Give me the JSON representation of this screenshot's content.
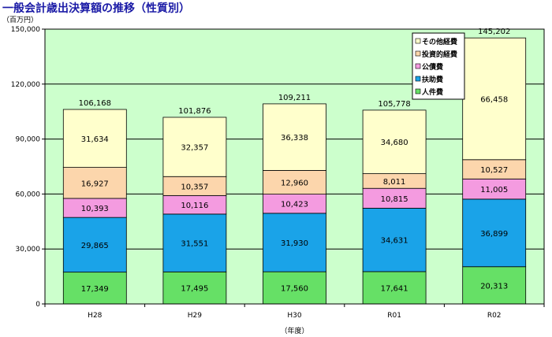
{
  "chart_data": {
    "type": "bar",
    "stacked": true,
    "title": "一般会計歳出決算額の推移（性質別）",
    "unit_label": "（百万円）",
    "xlabel": "（年度）",
    "ylabel": "",
    "ylim": [
      0,
      150000
    ],
    "yticks": [
      0,
      30000,
      60000,
      90000,
      120000,
      150000
    ],
    "ytick_labels": [
      "0",
      "30,000",
      "60,000",
      "90,000",
      "120,000",
      "150,000"
    ],
    "grid": true,
    "legend_position": "top-right",
    "categories": [
      "H28",
      "H29",
      "H30",
      "R01",
      "R02"
    ],
    "totals": [
      106168,
      101876,
      109211,
      105778,
      145202
    ],
    "total_labels": [
      "106,168",
      "101,876",
      "109,211",
      "105,778",
      "145,202"
    ],
    "series": [
      {
        "name": "人件費",
        "color": "#66e066",
        "values": [
          17349,
          17495,
          17560,
          17641,
          20313
        ],
        "labels": [
          "17,349",
          "17,495",
          "17,560",
          "17,641",
          "20,313"
        ]
      },
      {
        "name": "扶助費",
        "color": "#1aa3e8",
        "values": [
          29865,
          31551,
          31930,
          34631,
          36899
        ],
        "labels": [
          "29,865",
          "31,551",
          "31,930",
          "34,631",
          "36,899"
        ]
      },
      {
        "name": "公債費",
        "color": "#f49be0",
        "values": [
          10393,
          10116,
          10423,
          10815,
          11005
        ],
        "labels": [
          "10,393",
          "10,116",
          "10,423",
          "10,815",
          "11,005"
        ]
      },
      {
        "name": "投資的経費",
        "color": "#fcd6ac",
        "values": [
          16927,
          10357,
          12960,
          8011,
          10527
        ],
        "labels": [
          "16,927",
          "10,357",
          "12,960",
          "8,011",
          "10,527"
        ]
      },
      {
        "name": "その他経費",
        "color": "#ffffcc",
        "values": [
          31634,
          32357,
          36338,
          34680,
          66458
        ],
        "labels": [
          "31,634",
          "32,357",
          "36,338",
          "34,680",
          "66,458"
        ]
      }
    ]
  },
  "colors": {
    "plot_background": "#ccffcc",
    "gridline": "#000000",
    "title": "#1a1aa6"
  }
}
